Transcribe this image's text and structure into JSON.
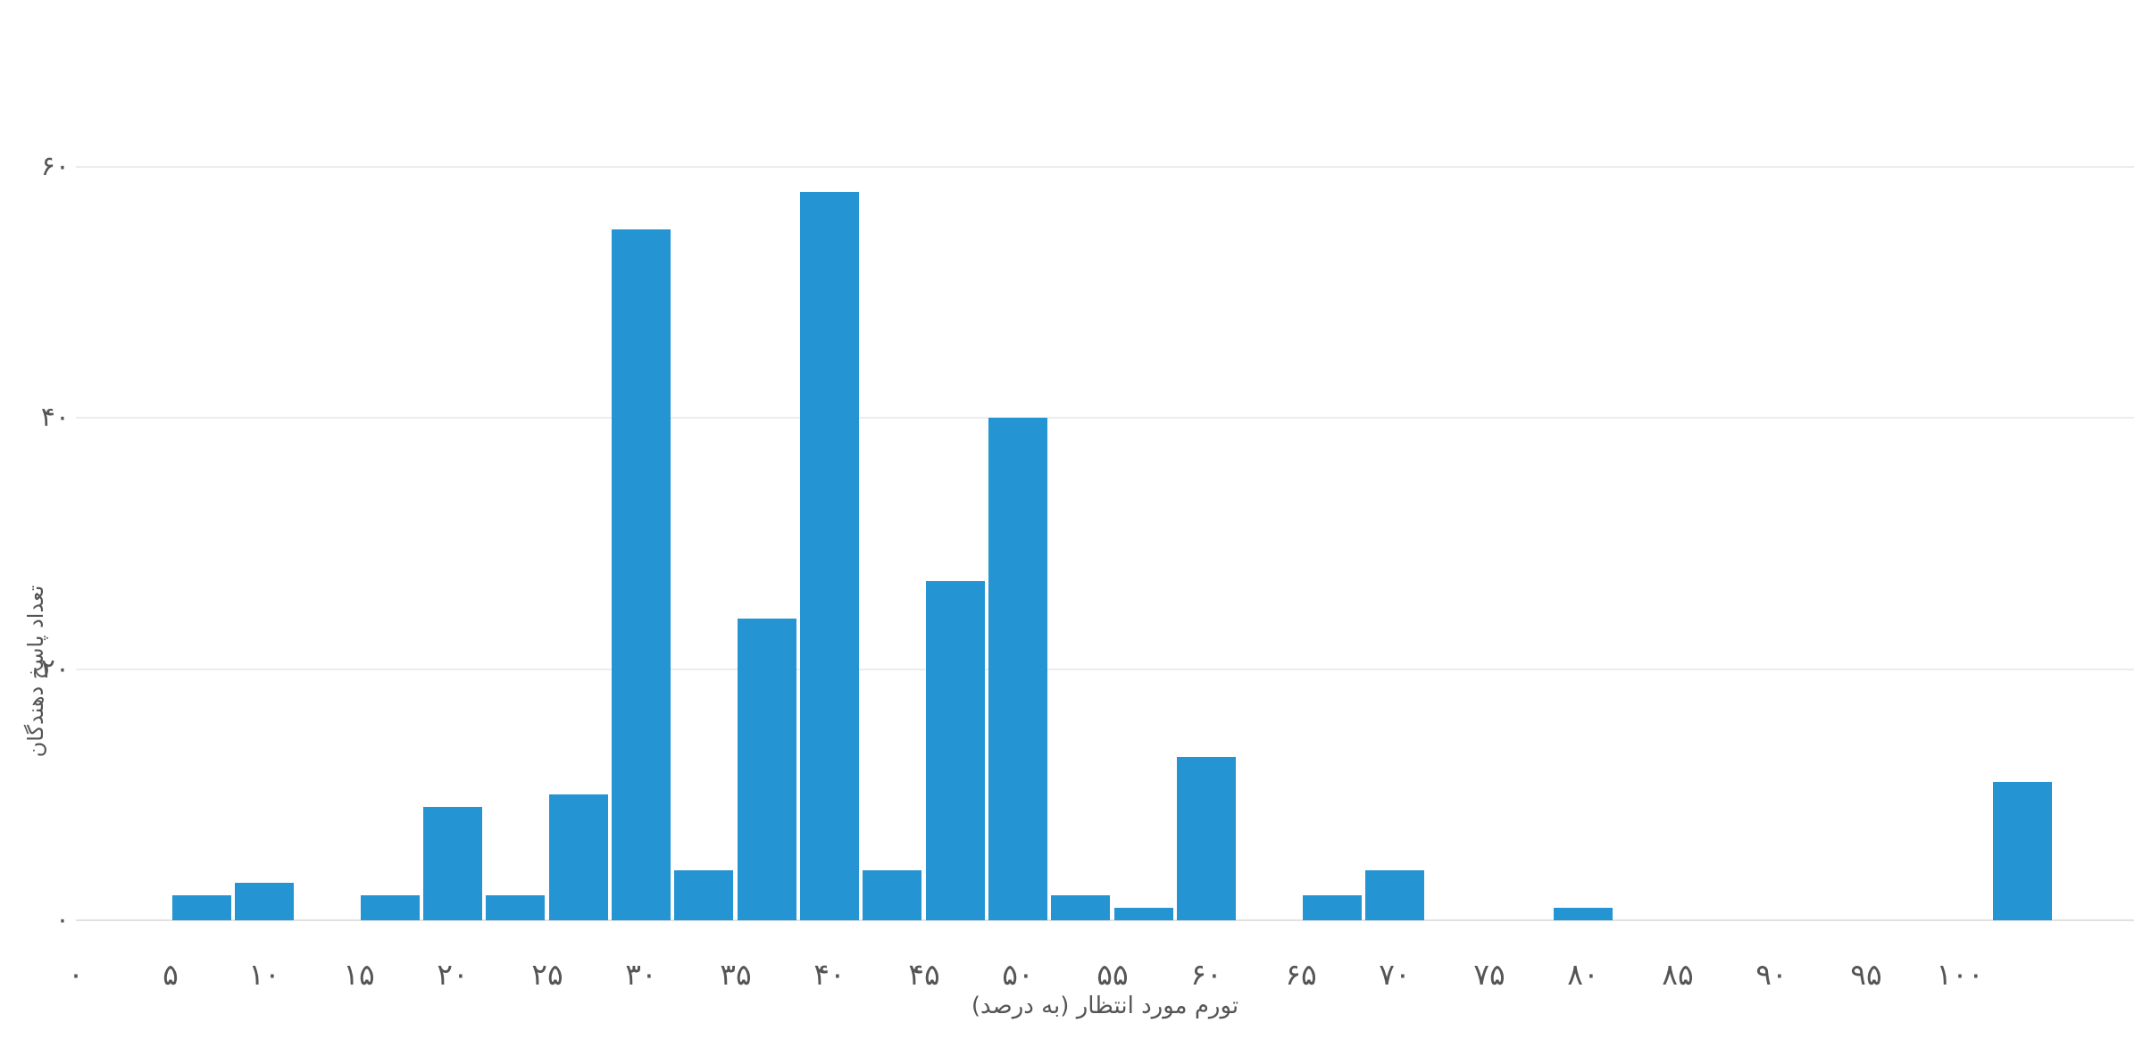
{
  "chart_data": {
    "type": "bar",
    "subtype": "histogram",
    "title": "",
    "xlabel": "تورم مورد انتظار (به درصد)",
    "ylabel": "تعداد پاسخ دهندگان",
    "legend": "none",
    "grid": "horizontal-only",
    "bar_color": "#2494d3",
    "grid_color": "#ececec",
    "axis_line_color": "#e2e2e2",
    "text_color": "#555555",
    "background_color": "#ffffff",
    "xlim": [
      0,
      108
    ],
    "ylim": [
      0,
      64
    ],
    "bin_width": 3.33,
    "bins": [
      {
        "start": 5,
        "end": 8.33,
        "count": 2
      },
      {
        "start": 8.33,
        "end": 11.67,
        "count": 3
      },
      {
        "start": 15,
        "end": 18.33,
        "count": 2
      },
      {
        "start": 18.33,
        "end": 21.67,
        "count": 9
      },
      {
        "start": 21.67,
        "end": 25,
        "count": 2
      },
      {
        "start": 25,
        "end": 28.33,
        "count": 10
      },
      {
        "start": 28.33,
        "end": 31.67,
        "count": 55
      },
      {
        "start": 31.67,
        "end": 35,
        "count": 4
      },
      {
        "start": 35,
        "end": 38.33,
        "count": 24
      },
      {
        "start": 38.33,
        "end": 41.67,
        "count": 58
      },
      {
        "start": 41.67,
        "end": 45,
        "count": 4
      },
      {
        "start": 45,
        "end": 48.33,
        "count": 27
      },
      {
        "start": 48.33,
        "end": 51.67,
        "count": 40
      },
      {
        "start": 51.67,
        "end": 55,
        "count": 2
      },
      {
        "start": 55,
        "end": 58.33,
        "count": 1
      },
      {
        "start": 58.33,
        "end": 61.67,
        "count": 13
      },
      {
        "start": 65,
        "end": 68.33,
        "count": 2
      },
      {
        "start": 68.33,
        "end": 71.67,
        "count": 4
      },
      {
        "start": 78.33,
        "end": 81.67,
        "count": 1
      },
      {
        "start": 101.67,
        "end": 105,
        "count": 11
      }
    ],
    "x_ticks": [
      {
        "value": 0,
        "label": "۰"
      },
      {
        "value": 5,
        "label": "۵"
      },
      {
        "value": 10,
        "label": "۱۰"
      },
      {
        "value": 15,
        "label": "۱۵"
      },
      {
        "value": 20,
        "label": "۲۰"
      },
      {
        "value": 25,
        "label": "۲۵"
      },
      {
        "value": 30,
        "label": "۳۰"
      },
      {
        "value": 35,
        "label": "۳۵"
      },
      {
        "value": 40,
        "label": "۴۰"
      },
      {
        "value": 45,
        "label": "۴۵"
      },
      {
        "value": 50,
        "label": "۵۰"
      },
      {
        "value": 55,
        "label": "۵۵"
      },
      {
        "value": 60,
        "label": "۶۰"
      },
      {
        "value": 65,
        "label": "۶۵"
      },
      {
        "value": 70,
        "label": "۷۰"
      },
      {
        "value": 75,
        "label": "۷۵"
      },
      {
        "value": 80,
        "label": "۸۰"
      },
      {
        "value": 85,
        "label": "۸۵"
      },
      {
        "value": 90,
        "label": "۹۰"
      },
      {
        "value": 95,
        "label": "۹۵"
      },
      {
        "value": 100,
        "label": "۱۰۰"
      }
    ],
    "y_ticks": [
      {
        "value": 0,
        "label": "۰"
      },
      {
        "value": 20,
        "label": "۲۰"
      },
      {
        "value": 40,
        "label": "۴۰"
      },
      {
        "value": 60,
        "label": "۶۰"
      }
    ]
  }
}
